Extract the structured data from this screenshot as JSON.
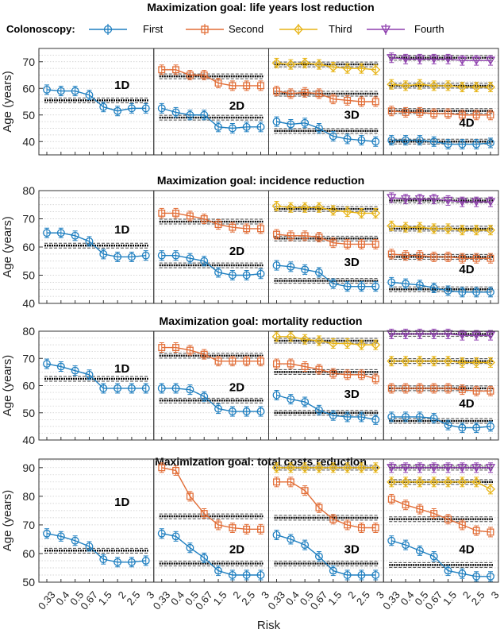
{
  "figure": {
    "ylabel": "Age (years)",
    "xlabel": "Risk",
    "legend_title": "Colonoscopy:",
    "risk_ticks": [
      "0.33",
      "0.4",
      "0.5",
      "0.67",
      "1.5",
      "2",
      "2.5",
      "3"
    ],
    "colors": {
      "First": "#1f7fc0",
      "Second": "#e26d36",
      "Third": "#e7b416",
      "Fourth": "#8e3fae",
      "threshold": "#000000"
    },
    "markers": {
      "First": "circle",
      "Second": "square",
      "Third": "diamond",
      "Fourth": "triangle-down"
    }
  },
  "legend": [
    {
      "name": "First",
      "marker": "circle",
      "color": "#1f7fc0"
    },
    {
      "name": "Second",
      "marker": "square",
      "color": "#e26d36"
    },
    {
      "name": "Third",
      "marker": "diamond",
      "color": "#e7b416"
    },
    {
      "name": "Fourth",
      "marker": "triangle-down",
      "color": "#8e3fae"
    }
  ],
  "chart_data": [
    {
      "type": "line",
      "title": "Maximization goal: life years lost reduction",
      "ylabel": "Age (years)",
      "xlabel": "Risk",
      "ylim": [
        35,
        75
      ],
      "yticks": [
        40,
        50,
        60,
        70
      ],
      "categories": [
        "0.33",
        "0.4",
        "0.5",
        "0.67",
        "1.5",
        "2",
        "2.5",
        "3"
      ],
      "panels": [
        {
          "label": "1D",
          "series": [
            {
              "name": "First",
              "values": [
                59.5,
                59,
                59,
                57.5,
                53,
                51.5,
                52.5,
                52.5
              ]
            }
          ],
          "thresholds": [
            55.5
          ]
        },
        {
          "label": "2D",
          "series": [
            {
              "name": "First",
              "values": [
                52.5,
                51,
                50,
                50,
                45.5,
                45,
                45.5,
                45.5
              ]
            },
            {
              "name": "Second",
              "values": [
                67,
                67,
                65,
                65,
                62,
                61,
                61,
                61
              ]
            }
          ],
          "thresholds": [
            49,
            64.5
          ]
        },
        {
          "label": "3D",
          "series": [
            {
              "name": "First",
              "values": [
                47.5,
                46.5,
                47,
                45,
                42,
                41,
                40.5,
                40
              ]
            },
            {
              "name": "Second",
              "values": [
                59,
                58,
                58.5,
                58,
                56,
                55.5,
                55,
                55
              ]
            },
            {
              "name": "Third",
              "values": [
                69.5,
                69,
                69.5,
                69,
                68,
                67.5,
                67.5,
                67
              ]
            }
          ],
          "thresholds": [
            44,
            58,
            69
          ]
        },
        {
          "label": "4D",
          "series": [
            {
              "name": "First",
              "values": [
                40.5,
                40.5,
                40.5,
                40,
                39,
                39,
                39,
                39.5
              ]
            },
            {
              "name": "Second",
              "values": [
                51.5,
                51,
                51,
                50.5,
                50.5,
                50,
                50,
                50
              ]
            },
            {
              "name": "Third",
              "values": [
                61.5,
                61,
                61.5,
                61,
                61,
                60.5,
                60.5,
                60.5
              ]
            },
            {
              "name": "Fourth",
              "values": [
                71.5,
                71,
                71,
                71,
                71,
                70.5,
                70.5,
                70.5
              ]
            }
          ],
          "thresholds": [
            40,
            51.5,
            61,
            71.5
          ]
        }
      ]
    },
    {
      "type": "line",
      "title": "Maximization goal: incidence reduction",
      "ylabel": "Age (years)",
      "xlabel": "Risk",
      "ylim": [
        40,
        80
      ],
      "yticks": [
        40,
        50,
        60,
        70,
        80
      ],
      "categories": [
        "0.33",
        "0.4",
        "0.5",
        "0.67",
        "1.5",
        "2",
        "2.5",
        "3"
      ],
      "panels": [
        {
          "label": "1D",
          "series": [
            {
              "name": "First",
              "values": [
                65,
                65,
                64,
                62,
                57.5,
                56.5,
                56.5,
                57
              ]
            }
          ],
          "thresholds": [
            60.5
          ]
        },
        {
          "label": "2D",
          "series": [
            {
              "name": "First",
              "values": [
                57,
                57,
                56,
                55,
                51,
                50,
                50,
                50.5
              ]
            },
            {
              "name": "Second",
              "values": [
                72,
                72,
                71,
                70,
                68,
                67,
                66.5,
                66.5
              ]
            }
          ],
          "thresholds": [
            53.5,
            69
          ]
        },
        {
          "label": "3D",
          "series": [
            {
              "name": "First",
              "values": [
                53.5,
                53,
                52,
                51,
                47,
                46,
                46,
                46
              ]
            },
            {
              "name": "Second",
              "values": [
                64.5,
                64,
                64,
                63.5,
                61.5,
                61,
                61,
                61
              ]
            },
            {
              "name": "Third",
              "values": [
                74.5,
                74,
                74,
                74,
                73,
                72.5,
                72,
                72
              ]
            }
          ],
          "thresholds": [
            48,
            63,
            73.5
          ]
        },
        {
          "label": "4D",
          "series": [
            {
              "name": "First",
              "values": [
                47.5,
                47,
                46.5,
                45.5,
                44.5,
                44,
                44,
                44
              ]
            },
            {
              "name": "Second",
              "values": [
                57.5,
                57,
                57,
                56.5,
                56.5,
                56,
                56,
                56
              ]
            },
            {
              "name": "Third",
              "values": [
                67.5,
                67,
                67,
                66.5,
                66.5,
                66,
                66,
                66
              ]
            },
            {
              "name": "Fourth",
              "values": [
                77.5,
                77,
                77,
                77,
                76.5,
                76,
                76,
                76
              ]
            }
          ],
          "thresholds": [
            45,
            56.5,
            66.5,
            76.5
          ]
        }
      ]
    },
    {
      "type": "line",
      "title": "Maximization goal: mortality reduction",
      "ylabel": "Age (years)",
      "xlabel": "Risk",
      "ylim": [
        40,
        80
      ],
      "yticks": [
        40,
        50,
        60,
        70,
        80
      ],
      "categories": [
        "0.33",
        "0.4",
        "0.5",
        "0.67",
        "1.5",
        "2",
        "2.5",
        "3"
      ],
      "panels": [
        {
          "label": "1D",
          "series": [
            {
              "name": "First",
              "values": [
                68,
                67,
                65.5,
                64,
                59,
                59,
                59,
                59
              ]
            }
          ],
          "thresholds": [
            62.5
          ]
        },
        {
          "label": "2D",
          "series": [
            {
              "name": "First",
              "values": [
                59,
                59,
                58.5,
                56,
                51.5,
                50.5,
                50.5,
                50.5
              ]
            },
            {
              "name": "Second",
              "values": [
                74,
                74,
                73,
                71.5,
                69,
                69,
                69,
                69
              ]
            }
          ],
          "thresholds": [
            54.5,
            71
          ]
        },
        {
          "label": "3D",
          "series": [
            {
              "name": "First",
              "values": [
                56.5,
                55,
                54,
                51,
                49,
                48.5,
                48.5,
                47.5
              ]
            },
            {
              "name": "Second",
              "values": [
                68,
                68,
                67,
                66,
                64.5,
                64,
                64,
                62.5
              ]
            },
            {
              "name": "Third",
              "values": [
                78,
                78,
                77,
                76.5,
                75.5,
                75.5,
                75,
                75
              ]
            }
          ],
          "thresholds": [
            50,
            65,
            76.5
          ]
        },
        {
          "label": "4D",
          "series": [
            {
              "name": "First",
              "values": [
                48.5,
                48.5,
                48.5,
                48,
                45.5,
                44.5,
                44.5,
                45
              ]
            },
            {
              "name": "Second",
              "values": [
                59,
                59,
                59,
                59,
                59,
                58.5,
                58,
                58
              ]
            },
            {
              "name": "Third",
              "values": [
                69,
                69,
                69,
                69,
                69,
                68.5,
                68.5,
                68.5
              ]
            },
            {
              "name": "Fourth",
              "values": [
                79,
                79,
                79,
                79,
                79,
                78.5,
                78.5,
                78.5
              ]
            }
          ],
          "thresholds": [
            47,
            59,
            69,
            79
          ]
        }
      ]
    },
    {
      "type": "line",
      "title": "Maximization goal: total costs reduction",
      "ylabel": "Age (years)",
      "xlabel": "Risk",
      "ylim": [
        50,
        93
      ],
      "yticks": [
        50,
        60,
        70,
        80,
        90
      ],
      "categories": [
        "0.33",
        "0.4",
        "0.5",
        "0.67",
        "1.5",
        "2",
        "2.5",
        "3"
      ],
      "panels": [
        {
          "label": "1D",
          "series": [
            {
              "name": "First",
              "values": [
                67,
                66,
                64.5,
                62.5,
                58,
                57,
                57,
                57.5
              ]
            }
          ],
          "thresholds": [
            61
          ]
        },
        {
          "label": "2D",
          "series": [
            {
              "name": "First",
              "values": [
                67,
                66,
                62,
                58.5,
                54,
                52.5,
                52.5,
                52.5
              ]
            },
            {
              "name": "Second",
              "values": [
                90,
                89,
                80,
                74,
                70,
                69,
                68.5,
                68.5
              ]
            }
          ],
          "thresholds": [
            56.5,
            73
          ]
        },
        {
          "label": "3D",
          "series": [
            {
              "name": "First",
              "values": [
                66.5,
                65,
                63,
                59,
                54,
                52.5,
                52.5,
                52.5
              ]
            },
            {
              "name": "Second",
              "values": [
                85,
                85,
                82,
                76,
                72,
                70,
                69,
                69
              ]
            },
            {
              "name": "Third",
              "values": [
                90,
                90,
                90,
                90,
                90,
                90,
                90,
                90
              ]
            }
          ],
          "thresholds": [
            56.5,
            72.5,
            90
          ]
        },
        {
          "label": "4D",
          "series": [
            {
              "name": "First",
              "values": [
                64.5,
                63,
                61,
                59,
                54,
                53,
                52,
                52
              ]
            },
            {
              "name": "Second",
              "values": [
                79,
                77,
                75.5,
                74,
                72,
                70,
                68,
                67.5
              ]
            },
            {
              "name": "Third",
              "values": [
                85,
                85,
                85,
                85,
                85,
                85,
                85,
                82.5
              ]
            },
            {
              "name": "Fourth",
              "values": [
                90,
                90,
                90,
                90,
                90,
                90,
                90,
                90
              ]
            }
          ],
          "thresholds": [
            56,
            72,
            85,
            90
          ]
        }
      ]
    }
  ]
}
